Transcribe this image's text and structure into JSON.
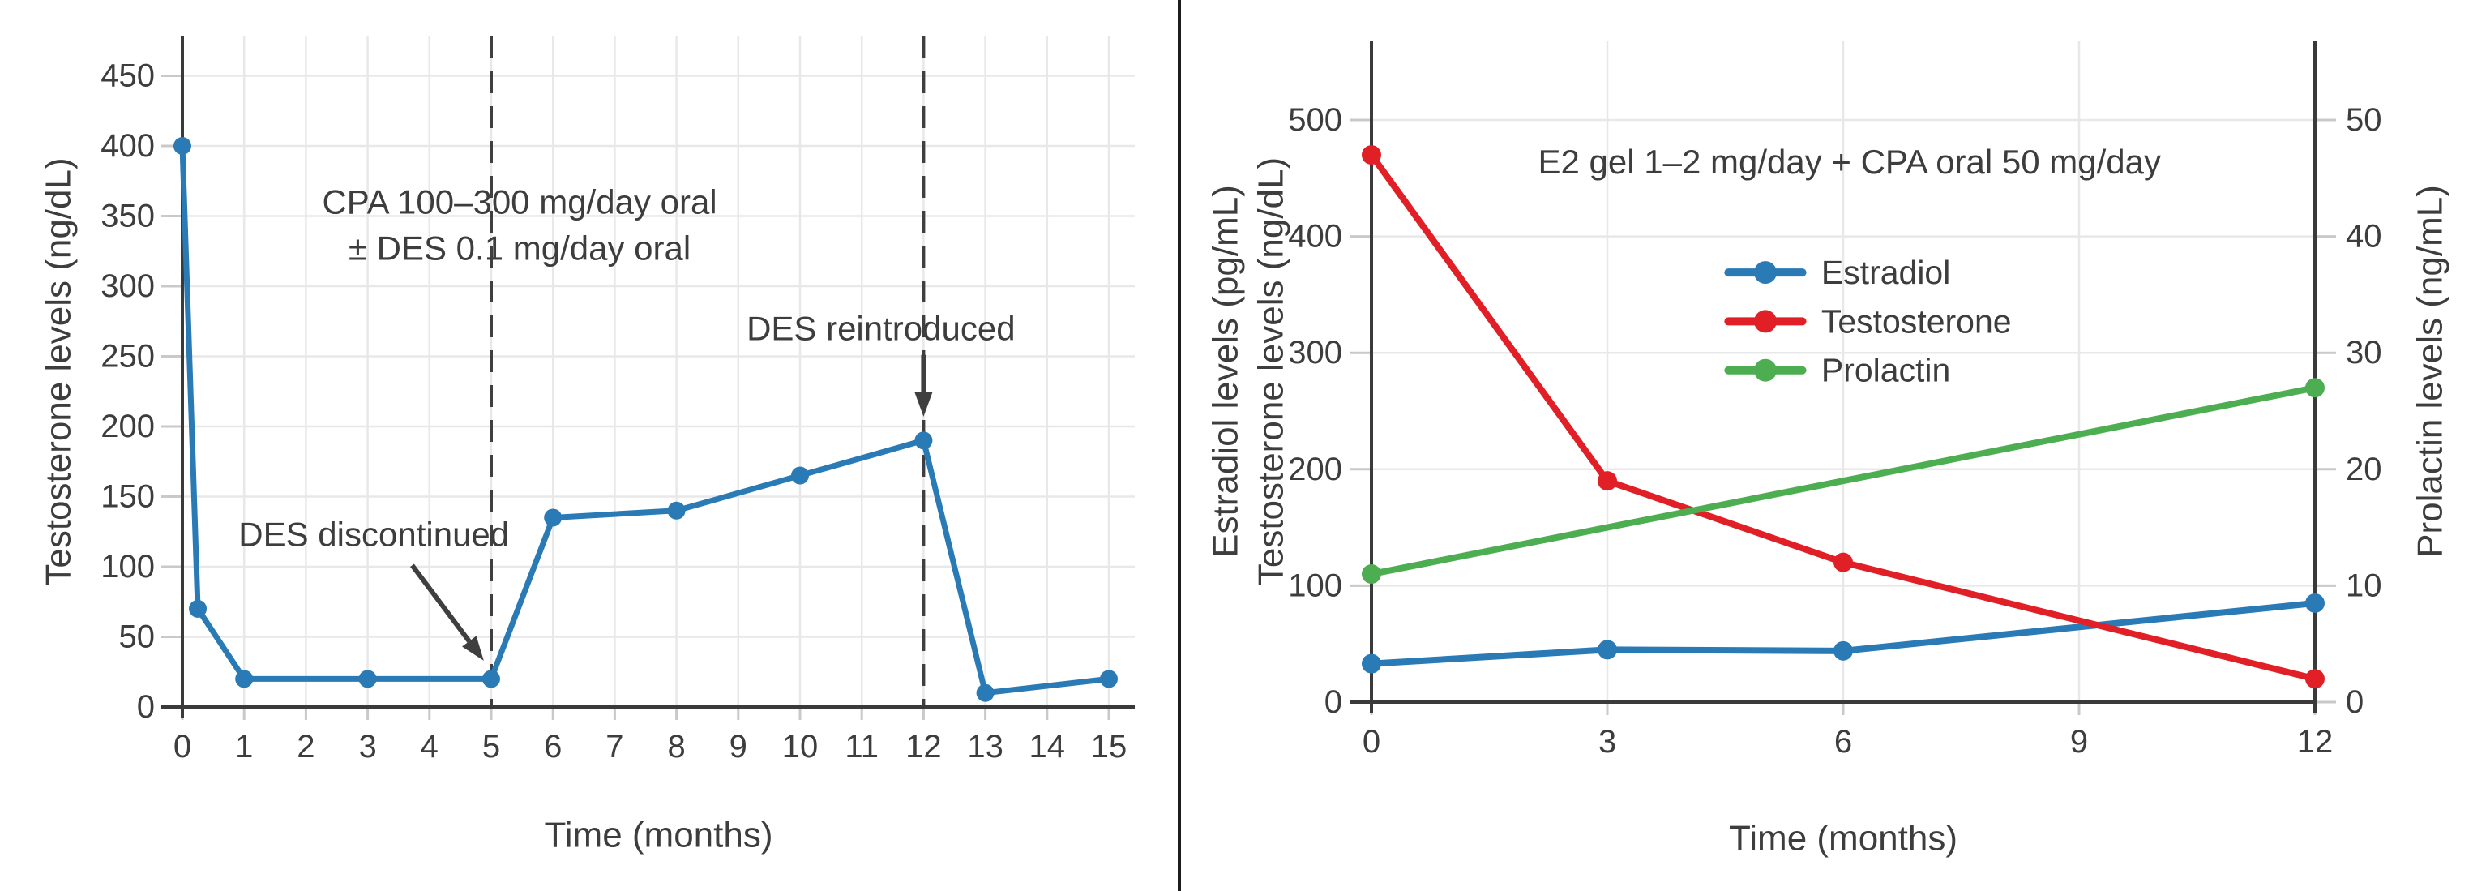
{
  "figure": {
    "background": "#ffffff",
    "divider_color": "#1c1c1c",
    "text_color": "#3d3d3d",
    "axis_color": "#3a3a3a",
    "grid_color": "#e8e8e8",
    "tick_color": "#c9c9c9",
    "annotation_color": "#3f3f3f"
  },
  "chart_data": [
    {
      "id": "cpa-des-monotherapy",
      "type": "line",
      "title": "",
      "xlabel": "Time (months)",
      "ylabel": "Testosterone levels (ng/dL)",
      "xticks": [
        0,
        1,
        2,
        3,
        4,
        5,
        6,
        7,
        8,
        9,
        10,
        11,
        12,
        13,
        14,
        15
      ],
      "yticks": [
        0,
        50,
        100,
        150,
        200,
        250,
        300,
        350,
        400,
        450
      ],
      "xlim": [
        0,
        15.4
      ],
      "ylim": [
        0,
        478
      ],
      "grid": true,
      "legend_position": "none",
      "series": [
        {
          "name": "Testosterone",
          "color": "#2a7ab5",
          "marker": "circle",
          "points": [
            [
              0,
              400
            ],
            [
              0.25,
              70
            ],
            [
              1,
              20
            ],
            [
              3,
              20
            ],
            [
              5,
              20
            ],
            [
              6,
              135
            ],
            [
              8,
              140
            ],
            [
              10,
              165
            ],
            [
              12,
              190
            ],
            [
              13,
              10
            ],
            [
              15,
              20
            ]
          ]
        }
      ],
      "vlines": [
        {
          "x": 5,
          "style": "dashed"
        },
        {
          "x": 12,
          "style": "dashed"
        }
      ],
      "annotations": [
        {
          "name": "regimen-note",
          "lines": [
            "CPA 100–300 mg/day oral",
            "± DES 0.1 mg/day oral"
          ],
          "x": 5.46,
          "y": 360
        },
        {
          "name": "des-discontinued",
          "lines": [
            "DES discontinued"
          ],
          "x": 3.1,
          "y": 123,
          "arrow": {
            "x1": 3.72,
            "y1": 101,
            "x2": 4.88,
            "y2": 33
          }
        },
        {
          "name": "des-reintroduced",
          "lines": [
            "DES reintroduced"
          ],
          "x": 11.31,
          "y": 270,
          "arrow": {
            "x1": 12,
            "y1": 251,
            "x2": 12,
            "y2": 207
          }
        }
      ]
    },
    {
      "id": "e2-gel-cpa-combination",
      "type": "line",
      "title": "E2 gel 1–2 mg/day + CPA oral 50 mg/day",
      "title_pos": {
        "x": 6.08,
        "y": 464
      },
      "xlabel": "Time (months)",
      "ylabel_left_lines": [
        "Estradiol levels (pg/mL)",
        "Testosterone levels (ng/dL)"
      ],
      "ylabel_right": "Prolactin levels (ng/mL)",
      "xticks": [
        0,
        3,
        6,
        9,
        12
      ],
      "yticks_left": [
        0,
        100,
        200,
        300,
        400,
        500
      ],
      "yticks_right": [
        0,
        10,
        20,
        30,
        40,
        50
      ],
      "xlim": [
        0,
        12
      ],
      "ylim_left": [
        0,
        545
      ],
      "ylim_right": [
        0,
        54.5
      ],
      "grid": true,
      "legend_position": "center-right-inside",
      "series": [
        {
          "name": "Estradiol",
          "axis": "left",
          "color": "#2a7ab5",
          "marker": "circle",
          "points": [
            [
              0,
              33
            ],
            [
              3,
              45
            ],
            [
              6,
              44
            ],
            [
              12,
              85
            ]
          ]
        },
        {
          "name": "Testosterone",
          "axis": "left",
          "color": "#e02026",
          "marker": "circle",
          "points": [
            [
              0,
              470
            ],
            [
              3,
              190
            ],
            [
              6,
              120
            ],
            [
              12,
              20
            ]
          ]
        },
        {
          "name": "Prolactin",
          "axis": "right",
          "color": "#4cae50",
          "marker": "circle",
          "points": [
            [
              0,
              11
            ],
            [
              12,
              27
            ]
          ]
        }
      ],
      "legend": {
        "line_x1": 4.54,
        "line_x2": 5.48,
        "text_x": 5.72,
        "row_values": [
          369,
          327,
          285
        ],
        "entries": [
          "Estradiol",
          "Testosterone",
          "Prolactin"
        ]
      }
    }
  ]
}
